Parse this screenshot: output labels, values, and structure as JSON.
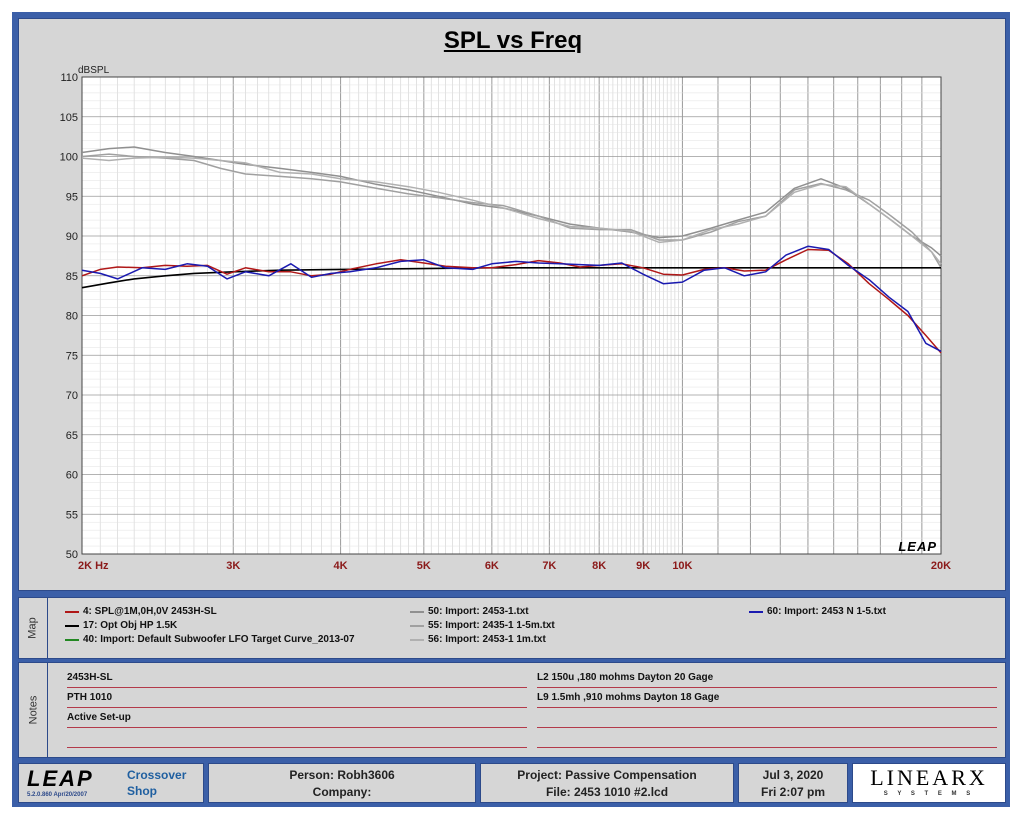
{
  "chart_data": {
    "type": "line",
    "title": "SPL vs Freq",
    "ylabel": "dBSPL",
    "ylim": [
      50,
      110
    ],
    "xlim": [
      2000,
      20000
    ],
    "xscale": "log",
    "yticks": [
      50,
      55,
      60,
      65,
      70,
      75,
      80,
      85,
      90,
      95,
      100,
      105,
      110
    ],
    "xtick_labels": [
      {
        "f": 2000,
        "label": "2K  Hz"
      },
      {
        "f": 3000,
        "label": "3K"
      },
      {
        "f": 4000,
        "label": "4K"
      },
      {
        "f": 5000,
        "label": "5K"
      },
      {
        "f": 6000,
        "label": "6K"
      },
      {
        "f": 7000,
        "label": "7K"
      },
      {
        "f": 8000,
        "label": "8K"
      },
      {
        "f": 9000,
        "label": "9K"
      },
      {
        "f": 10000,
        "label": "10K"
      },
      {
        "f": 20000,
        "label": "20K"
      }
    ],
    "grid": true,
    "watermark": "LEAP",
    "series": [
      {
        "name": "4: SPL@1M,0H,0V 2453H-SL",
        "color": "#b01818",
        "x": [
          2000,
          2100,
          2200,
          2350,
          2500,
          2650,
          2800,
          2950,
          3100,
          3300,
          3500,
          3700,
          3900,
          4100,
          4400,
          4700,
          5000,
          5300,
          5700,
          6000,
          6400,
          6800,
          7200,
          7600,
          8000,
          8500,
          9000,
          9500,
          10000,
          10600,
          11200,
          11800,
          12500,
          13200,
          14000,
          14800,
          15600,
          16500,
          17400,
          18300,
          19200,
          20000
        ],
        "y": [
          85.0,
          85.8,
          86.1,
          86.0,
          86.3,
          86.2,
          86.3,
          85.2,
          86.0,
          85.5,
          85.5,
          85.0,
          85.2,
          85.8,
          86.5,
          87.0,
          86.6,
          86.2,
          86.0,
          86.0,
          86.4,
          86.9,
          86.6,
          86.1,
          86.3,
          86.5,
          86.0,
          85.2,
          85.1,
          85.8,
          86.0,
          85.6,
          85.7,
          87.0,
          88.3,
          88.2,
          86.5,
          84.0,
          82.0,
          80.0,
          77.5,
          75.3
        ]
      },
      {
        "name": "17: Opt Obj HP   1.5K",
        "color": "#000000",
        "x": [
          2000,
          2150,
          2300,
          2500,
          2700,
          3000,
          3400,
          4000,
          5000,
          6000,
          8000,
          10000,
          12000,
          15000,
          20000
        ],
        "y": [
          83.5,
          84.1,
          84.6,
          85.0,
          85.3,
          85.5,
          85.7,
          85.8,
          85.9,
          86.0,
          86.0,
          86.0,
          86.0,
          86.0,
          86.0
        ]
      },
      {
        "name": "40: Import: Default Subwoofer LFO Target Curve_2013-07",
        "color": "#228822",
        "x": [],
        "y": []
      },
      {
        "name": "50: Import: 2453-1.txt",
        "color": "#909090",
        "x": [
          2000,
          2150,
          2300,
          2500,
          2700,
          2900,
          3100,
          3400,
          3700,
          4000,
          4400,
          4800,
          5200,
          5700,
          6200,
          6800,
          7400,
          8000,
          8700,
          9400,
          10000,
          10800,
          11600,
          12500,
          13500,
          14500,
          15500,
          16500,
          17500,
          18500,
          19500,
          20000
        ],
        "y": [
          100.5,
          101.0,
          101.2,
          100.5,
          100.0,
          99.5,
          99.0,
          98.5,
          98.0,
          97.5,
          96.5,
          95.8,
          95.0,
          94.0,
          93.5,
          92.5,
          91.5,
          91.0,
          90.5,
          89.8,
          90.0,
          91.0,
          92.0,
          93.0,
          96.0,
          97.2,
          96.0,
          94.0,
          92.0,
          90.0,
          88.5,
          87.5
        ]
      },
      {
        "name": "55: Import: 2435-1 1-5m.txt",
        "color": "#a0a0a0",
        "x": [
          2000,
          2150,
          2300,
          2500,
          2700,
          2900,
          3100,
          3400,
          3700,
          4000,
          4400,
          4800,
          5200,
          5700,
          6200,
          6800,
          7400,
          8000,
          8700,
          9400,
          10000,
          10800,
          11600,
          12500,
          13500,
          14500,
          15500,
          16500,
          17500,
          18500,
          19500,
          20000
        ],
        "y": [
          100.0,
          100.3,
          100.0,
          99.8,
          99.5,
          98.5,
          97.8,
          97.5,
          97.2,
          96.8,
          96.0,
          95.3,
          94.8,
          94.2,
          93.8,
          92.5,
          91.0,
          90.8,
          90.8,
          89.5,
          89.5,
          90.5,
          91.8,
          92.5,
          95.8,
          96.6,
          95.8,
          94.5,
          92.5,
          90.5,
          88.0,
          86.0
        ]
      },
      {
        "name": "56: Import: 2453-1 1m.txt",
        "color": "#b0b0b0",
        "x": [
          2000,
          2150,
          2300,
          2500,
          2700,
          2900,
          3100,
          3400,
          3700,
          4000,
          4400,
          4800,
          5200,
          5700,
          6200,
          6800,
          7400,
          8000,
          8700,
          9400,
          10000,
          10800,
          11600,
          12500,
          13500,
          14500,
          15500,
          16500,
          17500,
          18500,
          19500,
          20000
        ],
        "y": [
          99.8,
          99.5,
          99.8,
          99.9,
          99.8,
          99.5,
          99.2,
          98.0,
          97.8,
          97.2,
          96.8,
          96.2,
          95.5,
          94.5,
          93.5,
          92.2,
          91.2,
          91.0,
          90.6,
          89.2,
          89.5,
          90.8,
          91.5,
          92.5,
          95.5,
          96.5,
          96.2,
          94.0,
          92.0,
          90.0,
          88.0,
          86.5
        ]
      },
      {
        "name": "60: Import: 2453 N 1-5.txt",
        "color": "#1a1ab0",
        "x": [
          2000,
          2100,
          2200,
          2350,
          2500,
          2650,
          2800,
          2950,
          3100,
          3300,
          3500,
          3700,
          3900,
          4100,
          4400,
          4700,
          5000,
          5300,
          5700,
          6000,
          6400,
          6800,
          7200,
          7600,
          8000,
          8500,
          9000,
          9500,
          10000,
          10600,
          11200,
          11800,
          12500,
          13200,
          14000,
          14800,
          15600,
          16500,
          17400,
          18300,
          19200,
          20000
        ],
        "y": [
          85.7,
          85.3,
          84.6,
          86.0,
          85.8,
          86.5,
          86.2,
          84.6,
          85.5,
          85.0,
          86.5,
          84.8,
          85.3,
          85.5,
          86.0,
          86.8,
          87.0,
          86.0,
          85.8,
          86.5,
          86.8,
          86.6,
          86.5,
          86.4,
          86.3,
          86.6,
          85.2,
          84.0,
          84.2,
          85.7,
          86.0,
          85.0,
          85.5,
          87.6,
          88.7,
          88.3,
          86.3,
          84.5,
          82.3,
          80.5,
          76.5,
          75.5
        ]
      }
    ]
  },
  "map": {
    "label": "Map",
    "items": [
      {
        "label": "4: SPL@1M,0H,0V 2453H-SL",
        "color": "#b01818"
      },
      {
        "label": "17: Opt Obj HP   1.5K",
        "color": "#000000"
      },
      {
        "label": "40: Import: Default Subwoofer LFO Target Curve_2013-07",
        "color": "#228822"
      },
      {
        "label": "50: Import: 2453-1.txt",
        "color": "#909090"
      },
      {
        "label": "55: Import: 2435-1 1-5m.txt",
        "color": "#a0a0a0"
      },
      {
        "label": "56: Import: 2453-1 1m.txt",
        "color": "#b0b0b0"
      },
      {
        "label": "60: Import: 2453 N 1-5.txt",
        "color": "#1a1ab0"
      }
    ]
  },
  "notes": {
    "label": "Notes",
    "left": [
      "2453H-SL",
      "PTH 1010",
      "Active Set-up",
      ""
    ],
    "right": [
      "L2 150u ,180 mohms  Dayton 20 Gage",
      "L9 1.5mh ,910 mohms  Dayton 18 Gage",
      "",
      ""
    ]
  },
  "footer": {
    "logo": "LEAP",
    "version": "5.2.0.860    Apr/20/2007",
    "app_line1": "Crossover",
    "app_line2": "Shop",
    "person": "Person: Robh3606",
    "company": "Company:",
    "project": "Project: Passive Compensation",
    "file": "File: 2453 1010 #2.lcd",
    "date": "Jul  3, 2020",
    "time": "Fri  2:07 pm",
    "brand": "LINEARX",
    "brand_sub": "S Y S T E M S"
  }
}
